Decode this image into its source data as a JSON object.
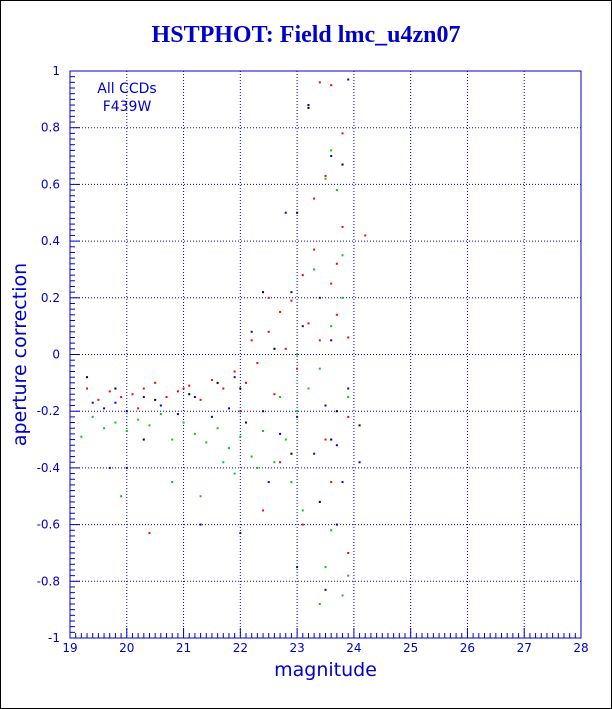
{
  "title": "HSTPHOT: Field lmc_u4zn07",
  "chart_data": {
    "type": "scatter",
    "title": "HSTPHOT: Field lmc_u4zn07",
    "xlabel": "magnitude",
    "ylabel": "aperture correction",
    "xlim": [
      19,
      28
    ],
    "ylim": [
      -1,
      1
    ],
    "xticks": [
      "19",
      "20",
      "21",
      "22",
      "23",
      "24",
      "25",
      "26",
      "27",
      "28"
    ],
    "yticks": [
      "-1",
      "-0.8",
      "-0.6",
      "-0.4",
      "-0.2",
      "0",
      "0.2",
      "0.4",
      "0.6",
      "0.8",
      "1"
    ],
    "grid": true,
    "annotation": [
      "All CCDs",
      "F439W"
    ],
    "series": [
      {
        "color": "#ff0000",
        "points": [
          [
            19.3,
            -0.12
          ],
          [
            19.5,
            -0.16
          ],
          [
            19.7,
            -0.13
          ],
          [
            19.9,
            -0.15
          ],
          [
            20.1,
            -0.14
          ],
          [
            20.3,
            -0.12
          ],
          [
            20.5,
            -0.1
          ],
          [
            20.7,
            -0.15
          ],
          [
            20.9,
            -0.13
          ],
          [
            21.1,
            -0.11
          ],
          [
            21.3,
            -0.16
          ],
          [
            21.5,
            -0.09
          ],
          [
            21.7,
            -0.12
          ],
          [
            21.9,
            -0.06
          ],
          [
            22.1,
            -0.1
          ],
          [
            22.2,
            0.05
          ],
          [
            22.3,
            -0.03
          ],
          [
            22.5,
            0.08
          ],
          [
            22.6,
            -0.14
          ],
          [
            22.7,
            0.15
          ],
          [
            22.8,
            0.02
          ],
          [
            22.9,
            0.19
          ],
          [
            23.0,
            -0.05
          ],
          [
            23.1,
            0.28
          ],
          [
            23.2,
            0.11
          ],
          [
            23.3,
            0.37
          ],
          [
            23.4,
            0.05
          ],
          [
            23.5,
            0.63
          ],
          [
            23.6,
            0.25
          ],
          [
            23.7,
            0.14
          ],
          [
            23.8,
            0.45
          ],
          [
            23.9,
            0.06
          ],
          [
            23.4,
            0.96
          ],
          [
            23.6,
            0.95
          ],
          [
            23.8,
            0.78
          ],
          [
            23.6,
            -0.45
          ],
          [
            23.1,
            -0.6
          ],
          [
            22.7,
            -0.38
          ],
          [
            22.4,
            -0.55
          ],
          [
            23.9,
            -0.22
          ],
          [
            24.2,
            0.42
          ],
          [
            22.0,
            -0.2
          ],
          [
            21.0,
            -0.12
          ],
          [
            20.2,
            -0.19
          ],
          [
            20.4,
            -0.63
          ],
          [
            23.3,
            0.55
          ],
          [
            23.7,
            0.32
          ],
          [
            22.5,
            0.2
          ],
          [
            23.5,
            -0.3
          ],
          [
            23.9,
            -0.7
          ]
        ]
      },
      {
        "color": "#00cc00",
        "points": [
          [
            19.2,
            -0.29
          ],
          [
            19.4,
            -0.22
          ],
          [
            19.6,
            -0.26
          ],
          [
            19.8,
            -0.24
          ],
          [
            20.0,
            -0.27
          ],
          [
            20.2,
            -0.23
          ],
          [
            20.4,
            -0.25
          ],
          [
            20.6,
            -0.21
          ],
          [
            20.8,
            -0.3
          ],
          [
            21.0,
            -0.24
          ],
          [
            21.2,
            -0.28
          ],
          [
            21.4,
            -0.31
          ],
          [
            21.6,
            -0.26
          ],
          [
            21.8,
            -0.33
          ],
          [
            22.0,
            -0.29
          ],
          [
            22.2,
            -0.36
          ],
          [
            22.4,
            -0.27
          ],
          [
            22.6,
            -0.38
          ],
          [
            22.8,
            -0.3
          ],
          [
            23.0,
            -0.2
          ],
          [
            23.2,
            -0.12
          ],
          [
            23.4,
            -0.05
          ],
          [
            23.6,
            0.1
          ],
          [
            23.8,
            0.2
          ],
          [
            23.5,
            0.62
          ],
          [
            23.7,
            0.58
          ],
          [
            23.8,
            0.35
          ],
          [
            23.6,
            -0.62
          ],
          [
            23.5,
            -0.75
          ],
          [
            23.8,
            -0.85
          ],
          [
            23.4,
            -0.88
          ],
          [
            22.9,
            -0.45
          ],
          [
            23.1,
            -0.55
          ],
          [
            21.3,
            -0.5
          ],
          [
            20.8,
            -0.45
          ],
          [
            19.9,
            -0.5
          ],
          [
            21.9,
            -0.42
          ],
          [
            22.3,
            -0.4
          ],
          [
            23.9,
            -0.15
          ],
          [
            23.3,
            0.3
          ],
          [
            22.7,
            -0.15
          ],
          [
            23.0,
            0.0
          ],
          [
            21.7,
            -0.38
          ],
          [
            23.9,
            -0.78
          ],
          [
            23.6,
            0.72
          ]
        ]
      },
      {
        "color": "#0000cc",
        "points": [
          [
            19.4,
            -0.17
          ],
          [
            19.6,
            -0.19
          ],
          [
            19.8,
            -0.17
          ],
          [
            20.0,
            -0.2
          ],
          [
            20.3,
            -0.15
          ],
          [
            20.6,
            -0.18
          ],
          [
            20.9,
            -0.21
          ],
          [
            21.2,
            -0.15
          ],
          [
            21.5,
            -0.22
          ],
          [
            21.8,
            -0.19
          ],
          [
            22.1,
            -0.24
          ],
          [
            22.4,
            -0.2
          ],
          [
            22.7,
            -0.28
          ],
          [
            23.0,
            -0.22
          ],
          [
            23.3,
            -0.35
          ],
          [
            23.5,
            -0.18
          ],
          [
            23.7,
            -0.32
          ],
          [
            23.9,
            -0.12
          ],
          [
            23.2,
            0.88
          ],
          [
            23.6,
            0.7
          ],
          [
            23.9,
            0.97
          ],
          [
            22.8,
            0.5
          ],
          [
            23.4,
            0.2
          ],
          [
            22.2,
            0.08
          ],
          [
            21.9,
            -0.08
          ],
          [
            23.0,
            -0.75
          ],
          [
            23.5,
            -0.83
          ],
          [
            23.7,
            -0.6
          ],
          [
            22.0,
            -0.63
          ],
          [
            21.3,
            -0.6
          ],
          [
            19.7,
            -0.4
          ],
          [
            20.0,
            -0.4
          ],
          [
            23.1,
            0.1
          ],
          [
            22.5,
            -0.45
          ],
          [
            23.8,
            -0.45
          ],
          [
            23.6,
            0.05
          ],
          [
            22.9,
            0.22
          ],
          [
            24.1,
            -0.38
          ]
        ]
      },
      {
        "color": "#000000",
        "points": [
          [
            19.3,
            -0.08
          ],
          [
            19.8,
            -0.12
          ],
          [
            20.5,
            -0.16
          ],
          [
            21.1,
            -0.14
          ],
          [
            21.6,
            -0.1
          ],
          [
            22.0,
            -0.12
          ],
          [
            22.6,
            0.02
          ],
          [
            23.0,
            0.5
          ],
          [
            23.2,
            0.87
          ],
          [
            23.8,
            0.67
          ],
          [
            22.9,
            -0.35
          ],
          [
            23.4,
            -0.52
          ],
          [
            23.7,
            -0.2
          ],
          [
            20.3,
            -0.3
          ],
          [
            22.4,
            0.22
          ],
          [
            23.6,
            -0.3
          ],
          [
            24.1,
            -0.25
          ]
        ]
      }
    ]
  }
}
